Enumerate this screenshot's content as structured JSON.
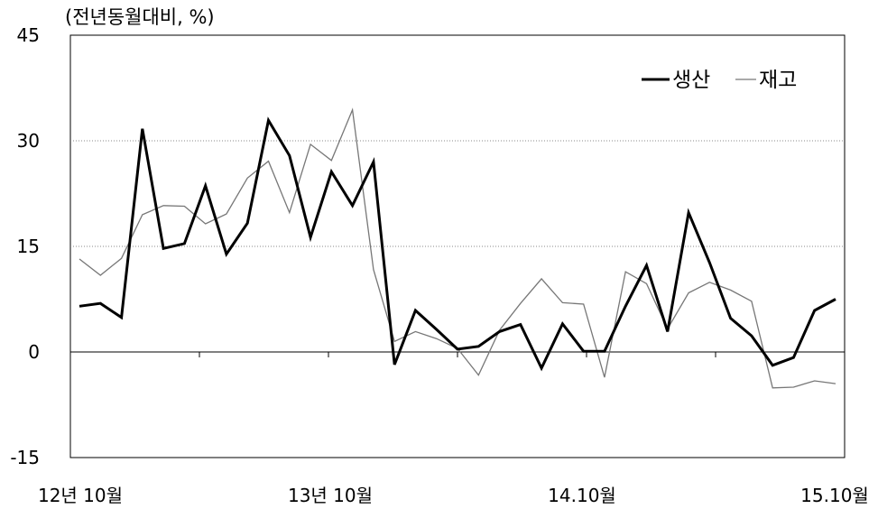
{
  "chart_data": {
    "type": "line",
    "unit_label": "(전년동월대비, %)",
    "xlabel": "",
    "ylabel": "",
    "x_tick_labels": [
      {
        "label": "12년 10월",
        "index": 0
      },
      {
        "label": "13년 10월",
        "index": 12
      },
      {
        "label": "14.10월",
        "index": 24
      },
      {
        "label": "15.10월",
        "index": 36
      }
    ],
    "y_ticks": [
      -15,
      0,
      15,
      30,
      45
    ],
    "ylim": [
      -15,
      45
    ],
    "grid": "horizontal dotted at 15 and 30",
    "legend_position": "top-right",
    "series": [
      {
        "name": "생산",
        "color": "#000000",
        "style": "thick",
        "values": [
          6.5,
          6.9,
          4.9,
          31.7,
          14.7,
          15.4,
          23.6,
          13.9,
          18.3,
          32.9,
          27.9,
          16.3,
          25.6,
          20.8,
          27.0,
          -1.8,
          5.9,
          3.2,
          0.4,
          0.8,
          2.9,
          3.9,
          -2.3,
          4.0,
          0.1,
          0.1,
          6.5,
          12.3,
          2.9,
          19.8,
          12.7,
          4.8,
          2.3,
          -1.9,
          -0.8,
          5.9,
          7.5
        ]
      },
      {
        "name": "재고",
        "color": "#777777",
        "style": "thin",
        "values": [
          13.2,
          10.9,
          13.3,
          19.5,
          20.8,
          20.7,
          18.2,
          19.6,
          24.7,
          27.1,
          19.8,
          29.5,
          27.2,
          34.4,
          11.7,
          1.5,
          2.9,
          1.9,
          0.5,
          -3.3,
          3.1,
          6.9,
          10.4,
          7.0,
          6.8,
          -3.6,
          11.4,
          9.7,
          3.3,
          8.4,
          9.9,
          8.8,
          7.2,
          -5.1,
          -5.0,
          -4.1,
          -4.5
        ]
      }
    ]
  }
}
